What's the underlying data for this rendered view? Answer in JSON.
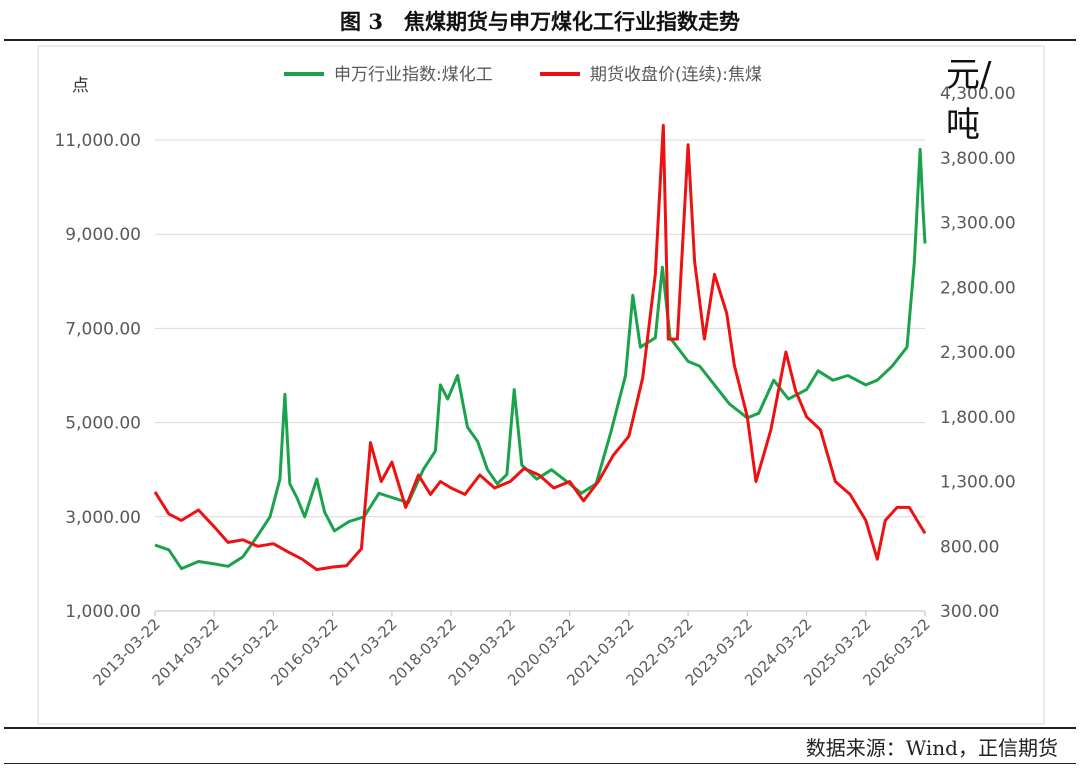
{
  "figure": {
    "title": "图 3　焦煤期货与申万煤化工行业指数走势",
    "source": "数据来源：Wind，正信期货"
  },
  "chart_data": {
    "type": "line",
    "left_axis": {
      "unit": "点",
      "min": 1000,
      "max": 12000,
      "ticks": [
        "1,000.00",
        "3,000.00",
        "5,000.00",
        "7,000.00",
        "9,000.00",
        "11,000.00"
      ]
    },
    "right_axis": {
      "unit_line1": "元/",
      "unit_line2": "吨",
      "min": 300,
      "max": 4300,
      "ticks": [
        "300.00",
        "800.00",
        "1,300.00",
        "1,800.00",
        "2,300.00",
        "2,800.00",
        "3,300.00",
        "3,800.00",
        "4,300.00"
      ]
    },
    "x_ticks": [
      "2013-03-22",
      "2014-03-22",
      "2015-03-22",
      "2016-03-22",
      "2017-03-22",
      "2018-03-22",
      "2019-03-22",
      "2020-03-22",
      "2021-03-22",
      "2022-03-22",
      "2023-03-22",
      "2024-03-22",
      "2025-03-22",
      "2026-03-22"
    ],
    "grid": "horizontal",
    "legend_position": "top",
    "series": [
      {
        "name": "申万行业指数:煤化工",
        "axis": "left",
        "color": "#1aa34a",
        "points": [
          [
            "2013-03-22",
            2400
          ],
          [
            "2013-06-15",
            2300
          ],
          [
            "2013-09-01",
            1900
          ],
          [
            "2013-12-15",
            2050
          ],
          [
            "2014-03-22",
            2000
          ],
          [
            "2014-06-15",
            1950
          ],
          [
            "2014-09-15",
            2150
          ],
          [
            "2014-12-15",
            2600
          ],
          [
            "2015-03-01",
            3000
          ],
          [
            "2015-05-01",
            3800
          ],
          [
            "2015-06-01",
            5600
          ],
          [
            "2015-07-01",
            3700
          ],
          [
            "2015-08-15",
            3400
          ],
          [
            "2015-10-01",
            3000
          ],
          [
            "2015-12-15",
            3800
          ],
          [
            "2016-02-01",
            3100
          ],
          [
            "2016-04-01",
            2700
          ],
          [
            "2016-07-01",
            2900
          ],
          [
            "2016-10-01",
            3000
          ],
          [
            "2017-01-01",
            3500
          ],
          [
            "2017-04-01",
            3400
          ],
          [
            "2017-07-01",
            3300
          ],
          [
            "2017-10-01",
            4000
          ],
          [
            "2017-12-15",
            4400
          ],
          [
            "2018-01-15",
            5800
          ],
          [
            "2018-03-01",
            5500
          ],
          [
            "2018-05-01",
            6000
          ],
          [
            "2018-07-01",
            4900
          ],
          [
            "2018-09-01",
            4600
          ],
          [
            "2018-11-01",
            4000
          ],
          [
            "2019-01-01",
            3700
          ],
          [
            "2019-03-01",
            3900
          ],
          [
            "2019-04-15",
            5700
          ],
          [
            "2019-06-01",
            4100
          ],
          [
            "2019-09-01",
            3800
          ],
          [
            "2019-12-01",
            4000
          ],
          [
            "2020-03-22",
            3700
          ],
          [
            "2020-06-01",
            3500
          ],
          [
            "2020-09-01",
            3700
          ],
          [
            "2020-12-01",
            4800
          ],
          [
            "2021-03-01",
            6000
          ],
          [
            "2021-04-15",
            7700
          ],
          [
            "2021-06-01",
            6600
          ],
          [
            "2021-09-01",
            6800
          ],
          [
            "2021-10-15",
            8300
          ],
          [
            "2021-12-01",
            6800
          ],
          [
            "2022-03-22",
            6300
          ],
          [
            "2022-06-01",
            6200
          ],
          [
            "2022-09-01",
            5800
          ],
          [
            "2022-12-01",
            5400
          ],
          [
            "2023-03-22",
            5100
          ],
          [
            "2023-06-01",
            5200
          ],
          [
            "2023-09-01",
            5900
          ],
          [
            "2023-12-01",
            5500
          ],
          [
            "2024-03-22",
            5700
          ],
          [
            "2024-06-01",
            6100
          ],
          [
            "2024-09-01",
            5900
          ],
          [
            "2024-12-01",
            6000
          ],
          [
            "2025-03-22",
            5800
          ],
          [
            "2025-06-01",
            5900
          ],
          [
            "2025-09-01",
            6200
          ],
          [
            "2025-12-01",
            6600
          ],
          [
            "2026-01-15",
            8400
          ],
          [
            "2026-02-20",
            10800
          ],
          [
            "2026-03-10",
            9500
          ],
          [
            "2026-03-22",
            8800
          ]
        ]
      },
      {
        "name": "期货收盘价(连续):焦煤",
        "axis": "right",
        "color": "#ee1111",
        "points": [
          [
            "2013-03-22",
            1220
          ],
          [
            "2013-06-15",
            1050
          ],
          [
            "2013-09-01",
            1000
          ],
          [
            "2013-12-15",
            1080
          ],
          [
            "2014-03-22",
            950
          ],
          [
            "2014-06-15",
            830
          ],
          [
            "2014-09-15",
            850
          ],
          [
            "2014-12-15",
            800
          ],
          [
            "2015-03-22",
            820
          ],
          [
            "2015-06-15",
            760
          ],
          [
            "2015-09-15",
            700
          ],
          [
            "2015-12-15",
            620
          ],
          [
            "2016-03-22",
            640
          ],
          [
            "2016-06-15",
            650
          ],
          [
            "2016-09-15",
            780
          ],
          [
            "2016-11-10",
            1600
          ],
          [
            "2017-01-15",
            1300
          ],
          [
            "2017-03-22",
            1450
          ],
          [
            "2017-06-15",
            1100
          ],
          [
            "2017-09-01",
            1350
          ],
          [
            "2017-11-15",
            1200
          ],
          [
            "2018-01-15",
            1300
          ],
          [
            "2018-03-22",
            1250
          ],
          [
            "2018-06-15",
            1200
          ],
          [
            "2018-09-15",
            1350
          ],
          [
            "2018-12-15",
            1250
          ],
          [
            "2019-03-22",
            1300
          ],
          [
            "2019-06-15",
            1400
          ],
          [
            "2019-09-15",
            1350
          ],
          [
            "2019-12-15",
            1250
          ],
          [
            "2020-03-22",
            1300
          ],
          [
            "2020-06-15",
            1150
          ],
          [
            "2020-09-15",
            1300
          ],
          [
            "2020-12-15",
            1500
          ],
          [
            "2021-03-22",
            1650
          ],
          [
            "2021-06-15",
            2100
          ],
          [
            "2021-09-01",
            2900
          ],
          [
            "2021-10-20",
            4050
          ],
          [
            "2021-11-20",
            2400
          ],
          [
            "2022-01-15",
            2400
          ],
          [
            "2022-03-22",
            3900
          ],
          [
            "2022-05-01",
            3000
          ],
          [
            "2022-07-01",
            2400
          ],
          [
            "2022-09-01",
            2900
          ],
          [
            "2022-11-15",
            2600
          ],
          [
            "2023-01-01",
            2200
          ],
          [
            "2023-03-22",
            1800
          ],
          [
            "2023-05-15",
            1300
          ],
          [
            "2023-08-15",
            1700
          ],
          [
            "2023-11-15",
            2300
          ],
          [
            "2024-01-15",
            2000
          ],
          [
            "2024-03-22",
            1800
          ],
          [
            "2024-06-15",
            1700
          ],
          [
            "2024-09-15",
            1300
          ],
          [
            "2024-12-15",
            1200
          ],
          [
            "2025-03-22",
            1000
          ],
          [
            "2025-06-01",
            700
          ],
          [
            "2025-07-20",
            1000
          ],
          [
            "2025-10-01",
            1100
          ],
          [
            "2025-12-15",
            1100
          ],
          [
            "2026-02-01",
            1000
          ],
          [
            "2026-03-22",
            900
          ]
        ]
      }
    ]
  }
}
